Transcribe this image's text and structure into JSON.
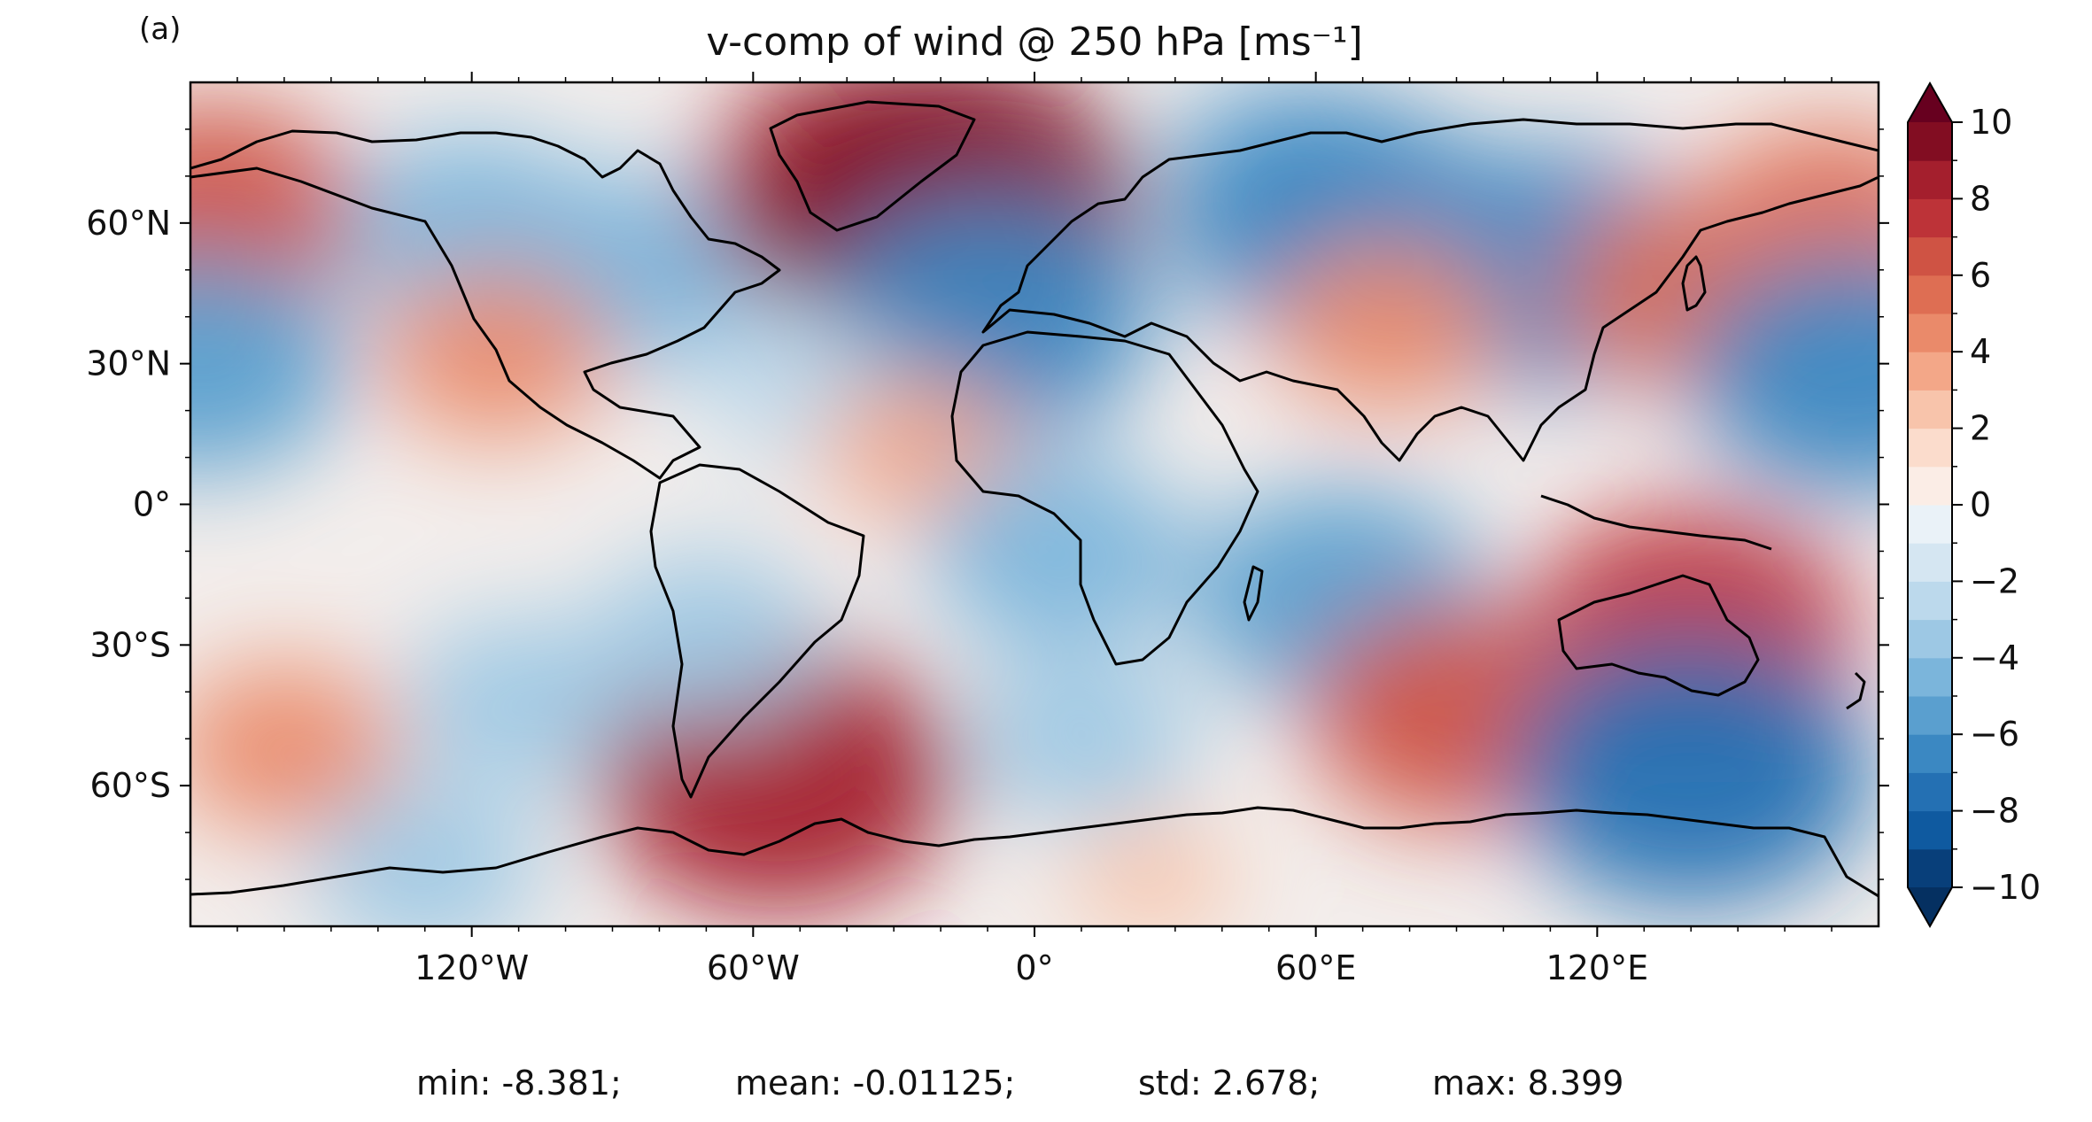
{
  "panel_label": "(a)",
  "title": "v-comp of wind @ 250 hPa [ms⁻¹]",
  "map": {
    "lon_ticks": [
      {
        "value": -120,
        "label": "120°W"
      },
      {
        "value": -60,
        "label": "60°W"
      },
      {
        "value": 0,
        "label": "0°"
      },
      {
        "value": 60,
        "label": "60°E"
      },
      {
        "value": 120,
        "label": "120°E"
      }
    ],
    "lat_ticks": [
      {
        "value": 60,
        "label": "60°N"
      },
      {
        "value": 30,
        "label": "30°N"
      },
      {
        "value": 0,
        "label": "0°"
      },
      {
        "value": -30,
        "label": "30°S"
      },
      {
        "value": -60,
        "label": "60°S"
      }
    ],
    "lon_range": [
      -180,
      180
    ],
    "lat_range": [
      -90,
      90
    ],
    "field_features": [
      {
        "lon": -175,
        "lat": 62,
        "value": 6
      },
      {
        "lon": -120,
        "lat": 58,
        "value": -5
      },
      {
        "lon": -85,
        "lat": 50,
        "value": -5
      },
      {
        "lon": -115,
        "lat": 32,
        "value": 4
      },
      {
        "lon": -35,
        "lat": 68,
        "value": 7
      },
      {
        "lon": -20,
        "lat": 64,
        "value": 9
      },
      {
        "lon": -10,
        "lat": 40,
        "value": -7
      },
      {
        "lon": 55,
        "lat": 70,
        "value": -5
      },
      {
        "lon": 65,
        "lat": 60,
        "value": -7
      },
      {
        "lon": 110,
        "lat": 50,
        "value": -7
      },
      {
        "lon": 75,
        "lat": 38,
        "value": 4
      },
      {
        "lon": 140,
        "lat": 45,
        "value": 5
      },
      {
        "lon": 170,
        "lat": 60,
        "value": 5
      },
      {
        "lon": -178,
        "lat": 30,
        "value": -6
      },
      {
        "lon": 175,
        "lat": 28,
        "value": -7
      },
      {
        "lon": -50,
        "lat": 25,
        "value": -3
      },
      {
        "lon": -25,
        "lat": 12,
        "value": 3
      },
      {
        "lon": 5,
        "lat": -10,
        "value": -5
      },
      {
        "lon": 65,
        "lat": -20,
        "value": -6
      },
      {
        "lon": 140,
        "lat": -27,
        "value": 7
      },
      {
        "lon": 90,
        "lat": -45,
        "value": 6
      },
      {
        "lon": -55,
        "lat": -58,
        "value": 8
      },
      {
        "lon": 140,
        "lat": -57,
        "value": -8
      },
      {
        "lon": -160,
        "lat": -52,
        "value": 4
      },
      {
        "lon": -110,
        "lat": -42,
        "value": -4
      },
      {
        "lon": 10,
        "lat": -50,
        "value": -4
      },
      {
        "lon": -70,
        "lat": -28,
        "value": -4
      },
      {
        "lon": -130,
        "lat": -78,
        "value": -4
      },
      {
        "lon": 25,
        "lat": -80,
        "value": 2
      }
    ]
  },
  "colorbar": {
    "min": -10,
    "max": 10,
    "step": 1,
    "extend": "both",
    "tick_values": [
      10,
      8,
      6,
      4,
      2,
      0,
      -2,
      -4,
      -6,
      -8,
      -10
    ],
    "tick_labels": [
      "10",
      "8",
      "6",
      "4",
      "2",
      "0",
      "−2",
      "−4",
      "−6",
      "−8",
      "−10"
    ],
    "colors": [
      "#083f7a",
      "#0f5aa0",
      "#2470b3",
      "#3b88c2",
      "#5a9fcf",
      "#7bb5db",
      "#9dc8e4",
      "#bcd9ec",
      "#d5e6f2",
      "#eaf2f8",
      "#fbede6",
      "#fbdccc",
      "#f8c4ab",
      "#f3a788",
      "#ea8a6a",
      "#de6e53",
      "#cf5344",
      "#bd3338",
      "#a41f2d",
      "#820d22"
    ],
    "under_color": "#053061",
    "over_color": "#67001f"
  },
  "stats": {
    "min": "min: -8.381;",
    "mean": "mean: -0.01125;",
    "std": "std: 2.678;",
    "max": "max: 8.399"
  }
}
